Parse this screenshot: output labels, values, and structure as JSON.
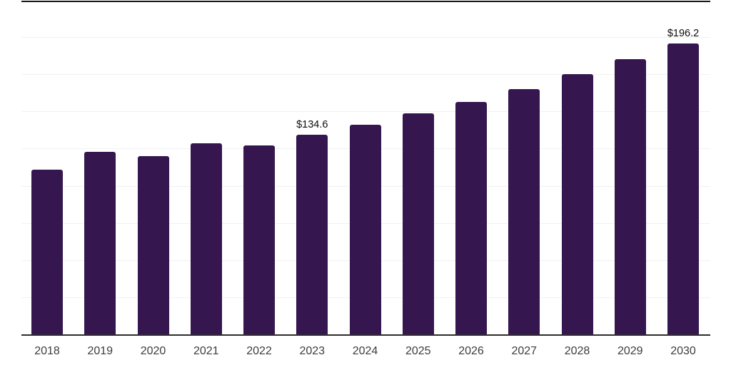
{
  "chart": {
    "background": "#ffffff",
    "bar_color": "#35164f",
    "grid_color": "#f1f1f1",
    "top_border_color": "#191919",
    "axis_line_color": "#2d2d2d",
    "tick_label_color": "#3c3c3c",
    "value_label_color": "#0d0d0d"
  },
  "chart_data": {
    "type": "bar",
    "title": "",
    "xlabel": "",
    "ylabel": "",
    "categories": [
      "2018",
      "2019",
      "2020",
      "2021",
      "2022",
      "2023",
      "2024",
      "2025",
      "2026",
      "2027",
      "2028",
      "2029",
      "2030"
    ],
    "values": [
      111.4,
      123.2,
      120.3,
      128.9,
      127.8,
      134.6,
      141.4,
      149.1,
      157.0,
      165.7,
      175.5,
      185.7,
      196.2
    ],
    "annotations": [
      {
        "index": 5,
        "category": "2023",
        "text": "$134.6"
      },
      {
        "index": 12,
        "category": "2030",
        "text": "$196.2"
      }
    ],
    "ylim": [
      0,
      225
    ],
    "grid_step": 25,
    "grid": "horizontal-light",
    "y_axis_labels_visible": false,
    "legend": "none"
  }
}
